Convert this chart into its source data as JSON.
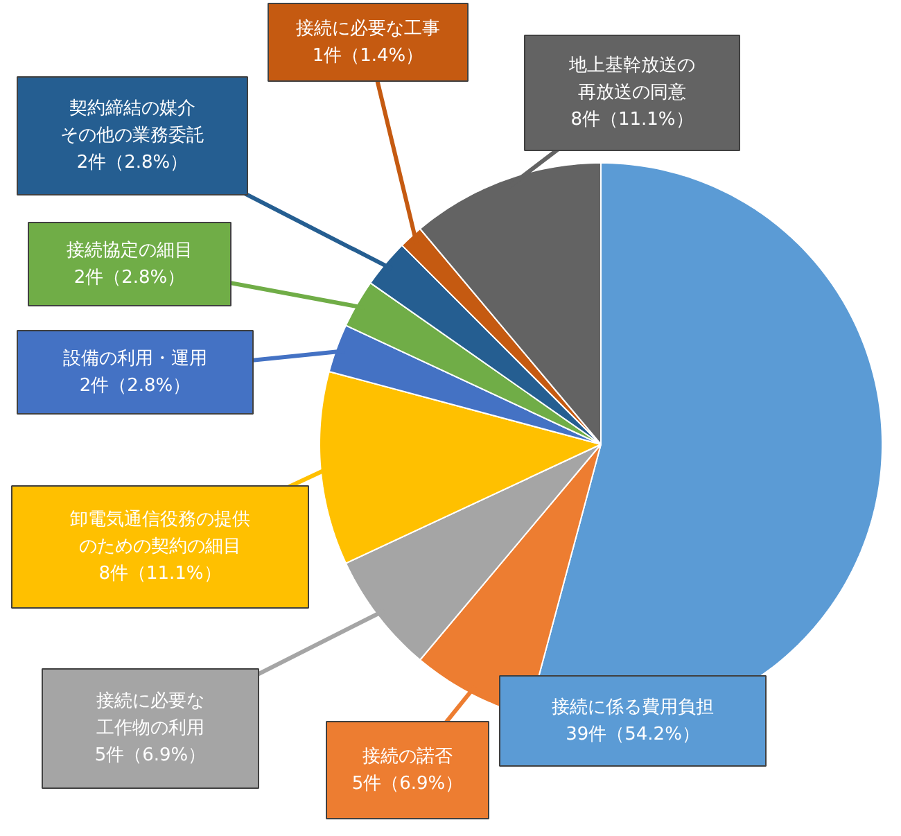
{
  "chart_data": {
    "type": "pie",
    "categories": [
      "接続に係る費用負担",
      "接続の諾否",
      "接続に必要な工作物の利用",
      "卸電気通信役務の提供のための契約の細目",
      "設備の利用・運用",
      "接続協定の細目",
      "契約締結の媒介その他の業務委託",
      "接続に必要な工事",
      "地上基幹放送の再放送の同意"
    ],
    "values": [
      39,
      5,
      5,
      8,
      2,
      2,
      2,
      1,
      8
    ],
    "colors": [
      "#5b9bd5",
      "#ed7d31",
      "#a5a5a5",
      "#ffc000",
      "#4472c4",
      "#70ad47",
      "#255e91",
      "#c55a11",
      "#636363"
    ],
    "value_labels": [
      "39件（54.2%）",
      "5件（6.9%）",
      "5件（6.9%）",
      "8件（11.1%）",
      "2件（2.8%）",
      "2件（2.8%）",
      "2件（2.8%）",
      "1件（1.4%）",
      "8件（11.1%）"
    ]
  }
}
